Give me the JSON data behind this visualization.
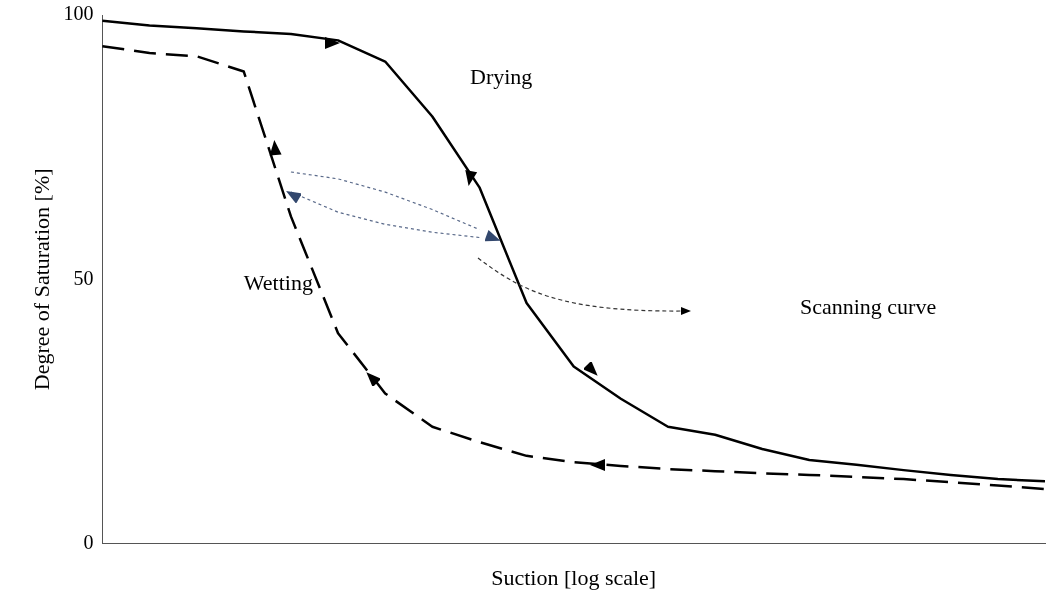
{
  "chart_data": {
    "type": "line",
    "xlabel": "Suction [log scale]",
    "ylabel": "Degree of Saturation [%]",
    "categories": [
      null,
      null,
      null,
      null,
      null,
      null,
      null,
      null,
      null,
      null,
      null,
      null,
      null,
      null,
      null,
      null,
      null,
      null,
      null,
      null,
      null
    ],
    "series": [
      {
        "color": "#000000",
        "line_style": "solid",
        "values": [
          98.9,
          98,
          97.5,
          96.9,
          96.4,
          95.2,
          91.2,
          80.8,
          67.4,
          45.5,
          33.5,
          27.4,
          22.1,
          20.6,
          17.9,
          15.8,
          14.9,
          13.9,
          13,
          12.2,
          11.8
        ]
      },
      {
        "color": "#000000",
        "line_style": "dashed",
        "values": [
          94.1,
          92.8,
          92.2,
          89.3,
          61.9,
          39.8,
          28.4,
          22.1,
          19.2,
          16.6,
          15.4,
          14.7,
          14.1,
          13.7,
          13.3,
          13,
          12.6,
          12.2,
          11.6,
          11,
          10.3
        ]
      },
      {
        "color": "#5a6a8a",
        "line_style": "dotted",
        "values": [
          null,
          null,
          null,
          null,
          70.3,
          69,
          66.5,
          63.2,
          59.4,
          null,
          null,
          null,
          null,
          null,
          null,
          null,
          null,
          null,
          null,
          null,
          null
        ]
      },
      {
        "color": "#5a6a8a",
        "line_style": "dotted",
        "values": [
          null,
          null,
          null,
          null,
          66.5,
          62.7,
          60.4,
          58.9,
          57.9,
          null,
          null,
          null,
          null,
          null,
          null,
          null,
          null,
          null,
          null,
          null,
          null
        ]
      }
    ],
    "ylim": [
      0,
      100
    ],
    "yticks": [
      0,
      50,
      100
    ],
    "grid": false,
    "legend": false,
    "marker": "none",
    "tick_labels": "y",
    "annotations": [
      "Drying",
      "Wetting",
      "Scanning curve"
    ]
  }
}
